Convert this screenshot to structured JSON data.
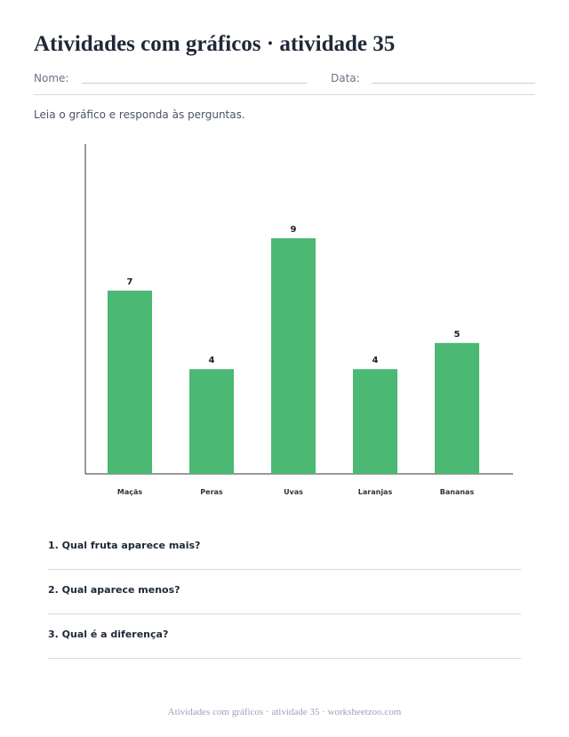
{
  "header": {
    "title": "Atividades com gráficos · atividade 35",
    "name_label": "Nome:",
    "date_label": "Data:"
  },
  "instructions": "Leia o gráfico e responda às perguntas.",
  "chart_data": {
    "type": "bar",
    "categories": [
      "Maçãs",
      "Peras",
      "Uvas",
      "Laranjas",
      "Bananas"
    ],
    "values": [
      7,
      4,
      9,
      4,
      5
    ],
    "title": "",
    "xlabel": "",
    "ylabel": "",
    "ylim": [
      0,
      12.6
    ],
    "grid": false,
    "bar_color": "#4bb874"
  },
  "questions": [
    "1. Qual fruta aparece mais?",
    "2. Qual aparece menos?",
    "3. Qual é a diferença?"
  ],
  "footer": "Atividades com gráficos · atividade 35 · worksheetzoo.com"
}
